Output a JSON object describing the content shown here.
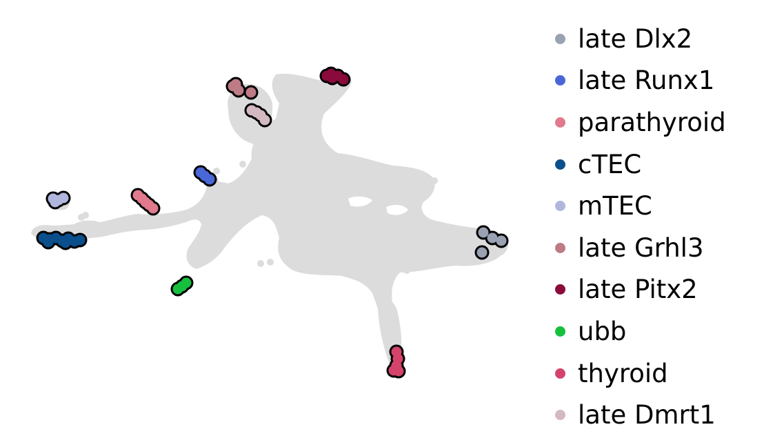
{
  "chart_data": {
    "type": "scatter",
    "title": "",
    "xlabel": "",
    "ylabel": "",
    "axes_visible": false,
    "grid": false,
    "legend_position": "right",
    "background_color": "#dcdcdc",
    "background_description": "all cells as grey UMAP points",
    "highlight_outline_color": "#000000",
    "series": [
      {
        "name": "late Dlx2",
        "color": "#9aa1b3",
        "points": [
          [
            701,
            337
          ],
          [
            714,
            345
          ],
          [
            727,
            349
          ],
          [
            699,
            366
          ]
        ]
      },
      {
        "name": "late Runx1",
        "color": "#4a67d8",
        "points": [
          [
            291,
            250
          ],
          [
            297,
            255
          ],
          [
            304,
            260
          ]
        ]
      },
      {
        "name": "parathyroid",
        "color": "#e07a8c",
        "points": [
          [
            200,
            283
          ],
          [
            206,
            288
          ],
          [
            211,
            293
          ],
          [
            216,
            297
          ],
          [
            222,
            302
          ]
        ]
      },
      {
        "name": "cTEC",
        "color": "#0a4f8c",
        "points": [
          [
            63,
            345
          ],
          [
            72,
            347
          ],
          [
            81,
            345
          ],
          [
            90,
            349
          ],
          [
            99,
            346
          ],
          [
            108,
            350
          ],
          [
            116,
            348
          ],
          [
            70,
            351
          ],
          [
            95,
            352
          ]
        ]
      },
      {
        "name": "mTEC",
        "color": "#b1b6dd",
        "points": [
          [
            77,
            288
          ],
          [
            85,
            290
          ],
          [
            92,
            287
          ],
          [
            80,
            293
          ]
        ]
      },
      {
        "name": "late Grhl3",
        "color": "#bd7b86",
        "points": [
          [
            338,
            125
          ],
          [
            346,
            131
          ],
          [
            342,
            122
          ],
          [
            364,
            134
          ]
        ]
      },
      {
        "name": "late Pitx2",
        "color": "#8b0a3c",
        "points": [
          [
            474,
            110
          ],
          [
            482,
            113
          ],
          [
            490,
            110
          ],
          [
            498,
            115
          ],
          [
            480,
            107
          ]
        ]
      },
      {
        "name": "ubb",
        "color": "#17bf3f",
        "points": [
          [
            258,
            419
          ],
          [
            264,
            415
          ],
          [
            270,
            410
          ]
        ]
      },
      {
        "name": "thyroid",
        "color": "#d4436b",
        "points": [
          [
            575,
            510
          ],
          [
            577,
            520
          ],
          [
            575,
            530
          ],
          [
            578,
            538
          ],
          [
            571,
            537
          ]
        ]
      },
      {
        "name": "late Dmrt1",
        "color": "#d5b9c0",
        "points": [
          [
            365,
            160
          ],
          [
            372,
            163
          ],
          [
            378,
            167
          ],
          [
            384,
            174
          ]
        ]
      }
    ]
  }
}
